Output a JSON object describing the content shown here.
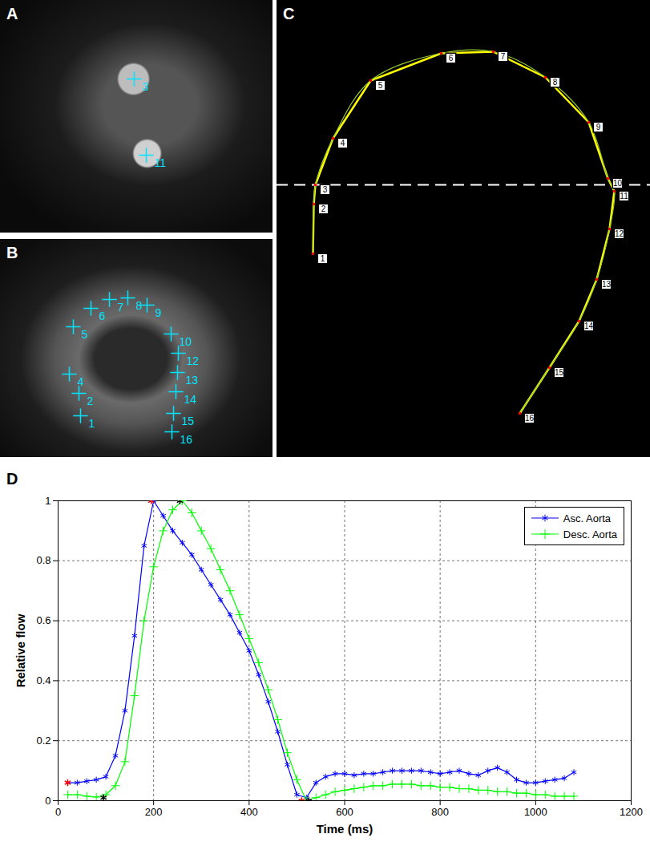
{
  "chart_data": [
    {
      "type": "scatter",
      "title": "A",
      "xlim": [
        0,
        340
      ],
      "ylim": [
        290,
        0
      ],
      "tick_labels": false,
      "marker": "plus",
      "color": "#00e5ff",
      "x": [
        167,
        182
      ],
      "y": [
        98,
        193
      ],
      "point_labels": [
        "3",
        "11"
      ]
    },
    {
      "type": "scatter",
      "title": "B",
      "xlim": [
        0,
        340
      ],
      "ylim": [
        272,
        0
      ],
      "tick_labels": false,
      "marker": "plus",
      "color": "#00e5ff",
      "x": [
        100,
        98,
        86,
        91,
        113,
        136,
        159,
        183,
        213,
        222,
        221,
        219,
        216,
        214
      ],
      "y": [
        220,
        192,
        168,
        109,
        86,
        75,
        73,
        82,
        118,
        142,
        166,
        190,
        217,
        240
      ],
      "point_labels": [
        "1",
        "2",
        "4",
        "5",
        "6",
        "7",
        "8",
        "9",
        "10",
        "12",
        "13",
        "14",
        "15",
        "16"
      ]
    },
    {
      "type": "line",
      "title": "C",
      "xlim": [
        0,
        466
      ],
      "ylim": [
        570,
        0
      ],
      "tick_labels": false,
      "color": "#9acd32",
      "marker": "circle",
      "x": [
        45,
        46,
        48,
        70,
        117,
        205,
        270,
        335,
        389,
        413,
        421,
        415,
        399,
        377,
        340,
        303
      ],
      "y": [
        316,
        254,
        230,
        172,
        100,
        66,
        64,
        96,
        152,
        222,
        238,
        285,
        348,
        400,
        458,
        515
      ],
      "point_labels": [
        "1",
        "2",
        "3",
        "4",
        "5",
        "6",
        "7",
        "8",
        "9",
        "10",
        "11",
        "12",
        "13",
        "14",
        "15",
        "16"
      ],
      "reference_line": {
        "y": 230,
        "line_style": "dashed"
      }
    },
    {
      "type": "line",
      "title": "D",
      "x_label": "Time (ms)",
      "y_label": "Relative flow",
      "xlim": [
        0,
        1200
      ],
      "xticks": [
        0,
        200,
        400,
        600,
        800,
        1000,
        1200
      ],
      "ylim": [
        0,
        1
      ],
      "yticks": [
        0,
        0.2,
        0.4,
        0.6,
        0.8,
        1
      ],
      "grid": true,
      "legend": "top-right",
      "x": [
        20,
        40,
        60,
        80,
        100,
        120,
        140,
        160,
        180,
        200,
        220,
        240,
        260,
        280,
        300,
        320,
        340,
        360,
        380,
        400,
        420,
        440,
        460,
        480,
        500,
        520,
        540,
        560,
        580,
        600,
        620,
        640,
        660,
        680,
        700,
        720,
        740,
        760,
        780,
        800,
        820,
        840,
        860,
        880,
        900,
        920,
        940,
        960,
        980,
        1000,
        1020,
        1040,
        1060,
        1080
      ],
      "series": [
        {
          "name": "Asc. Aorta",
          "color": "#0000ff",
          "marker": "asterisk",
          "values": [
            0.06,
            0.06,
            0.065,
            0.07,
            0.08,
            0.15,
            0.3,
            0.55,
            0.85,
            1.0,
            0.95,
            0.9,
            0.86,
            0.82,
            0.77,
            0.72,
            0.67,
            0.62,
            0.56,
            0.5,
            0.42,
            0.33,
            0.23,
            0.12,
            0.02,
            0.01,
            0.06,
            0.08,
            0.09,
            0.09,
            0.085,
            0.09,
            0.09,
            0.095,
            0.1,
            0.1,
            0.1,
            0.1,
            0.095,
            0.09,
            0.095,
            0.1,
            0.09,
            0.085,
            0.1,
            0.11,
            0.095,
            0.07,
            0.06,
            0.06,
            0.065,
            0.07,
            0.075,
            0.095
          ],
          "key_points_x": [
            20,
            195,
            510
          ],
          "key_points_y": [
            0.06,
            1,
            0
          ],
          "key_points_color": "#ff0000"
        },
        {
          "name": "Desc. Aorta",
          "color": "#00ff00",
          "marker": "plus",
          "values": [
            0.02,
            0.02,
            0.015,
            0.012,
            0.02,
            0.05,
            0.13,
            0.35,
            0.6,
            0.78,
            0.9,
            0.97,
            1.0,
            0.96,
            0.9,
            0.84,
            0.77,
            0.7,
            0.62,
            0.54,
            0.46,
            0.37,
            0.27,
            0.16,
            0.07,
            0.0,
            0.01,
            0.02,
            0.03,
            0.035,
            0.04,
            0.045,
            0.05,
            0.05,
            0.055,
            0.055,
            0.055,
            0.05,
            0.05,
            0.045,
            0.045,
            0.04,
            0.04,
            0.035,
            0.035,
            0.03,
            0.03,
            0.025,
            0.025,
            0.02,
            0.02,
            0.015,
            0.015,
            0.015
          ],
          "key_points_x": [
            95,
            255,
            525
          ],
          "key_points_y": [
            0.01,
            1,
            0
          ],
          "key_points_color": "#000000"
        }
      ]
    }
  ]
}
